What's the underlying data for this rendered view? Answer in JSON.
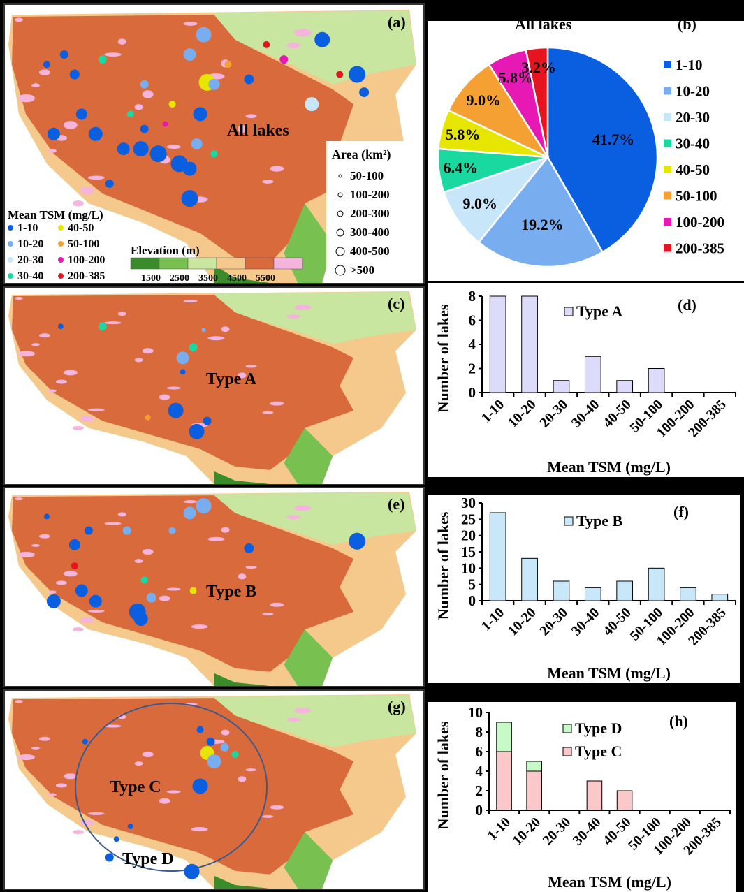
{
  "colors": {
    "tsm": [
      "#0a5ee0",
      "#78aef0",
      "#c8e6fa",
      "#19d9a0",
      "#e6e600",
      "#f5a032",
      "#e619b4",
      "#e6141e"
    ],
    "elevation": [
      "#3a8c2a",
      "#78c050",
      "#c8e6a0",
      "#f5c88c",
      "#d96a3c",
      "#f5b4dc"
    ],
    "typeA": "#dcdcfa",
    "typeB": "#c8e8fa",
    "typeC": "#fac8c8",
    "typeD": "#c8fac8"
  },
  "map_a": {
    "panel_label": "(a)",
    "title": "All lakes",
    "tsm_legend_title": "Mean TSM (mg/L)",
    "tsm_classes": [
      "1-10",
      "10-20",
      "20-30",
      "30-40",
      "40-50",
      "50-100",
      "100-200",
      "200-385"
    ],
    "elevation_title": "Elevation (m)",
    "elevation_ticks": [
      "1500",
      "2500",
      "3500",
      "4500",
      "5500"
    ],
    "area_title": "Area (km²)",
    "area_classes": [
      "50-100",
      "100-200",
      "200-300",
      "300-400",
      "400-500",
      ">500"
    ]
  },
  "map_c": {
    "panel_label": "(c)",
    "title": "Type A"
  },
  "map_e": {
    "panel_label": "(e)",
    "title": "Type B"
  },
  "map_g": {
    "panel_label": "(g)",
    "title_c": "Type C",
    "title_d": "Type D"
  },
  "chart_data": [
    {
      "type": "pie",
      "panel_label": "(b)",
      "title": "All lakes",
      "categories": [
        "1-10",
        "10-20",
        "20-30",
        "30-40",
        "40-50",
        "50-100",
        "100-200",
        "200-385"
      ],
      "values": [
        41.7,
        19.2,
        9.0,
        6.4,
        5.8,
        9.0,
        5.8,
        3.2
      ],
      "labels": [
        "41.7%",
        "19.2%",
        "9.0%",
        "6.4%",
        "5.8%",
        "9.0%",
        "5.8%",
        "3.2%"
      ],
      "legend_position": "right"
    },
    {
      "type": "bar",
      "panel_label": "(d)",
      "categories": [
        "1-10",
        "10-20",
        "20-30",
        "30-40",
        "40-50",
        "50-100",
        "100-200",
        "200-385"
      ],
      "series": [
        {
          "name": "Type A",
          "values": [
            8,
            8,
            1,
            3,
            1,
            2,
            0,
            0
          ]
        }
      ],
      "xlabel": "Mean TSM (mg/L)",
      "ylabel": "Number of lakes",
      "ylim": [
        0,
        8
      ],
      "yticks": [
        "0",
        "2",
        "4",
        "6",
        "8"
      ],
      "legend_position": "top-center"
    },
    {
      "type": "bar",
      "panel_label": "(f)",
      "categories": [
        "1-10",
        "10-20",
        "20-30",
        "30-40",
        "40-50",
        "50-100",
        "100-200",
        "200-385"
      ],
      "series": [
        {
          "name": "Type B",
          "values": [
            27,
            13,
            6,
            4,
            6,
            10,
            4,
            2
          ]
        }
      ],
      "xlabel": "Mean TSM (mg/L)",
      "ylabel": "Number of lakes",
      "ylim": [
        0,
        30
      ],
      "yticks": [
        "0",
        "5",
        "10",
        "15",
        "20",
        "25",
        "30"
      ],
      "legend_position": "top-center"
    },
    {
      "type": "bar",
      "stacked": true,
      "panel_label": "(h)",
      "categories": [
        "1-10",
        "10-20",
        "20-30",
        "30-40",
        "40-50",
        "50-100",
        "100-200",
        "200-385"
      ],
      "series": [
        {
          "name": "Type C",
          "values": [
            6,
            4,
            0,
            3,
            2,
            0,
            0,
            0
          ]
        },
        {
          "name": "Type D",
          "values": [
            3,
            1,
            0,
            0,
            0,
            0,
            0,
            0
          ]
        }
      ],
      "xlabel": "Mean TSM (mg/L)",
      "ylabel": "Number of lakes",
      "ylim": [
        0,
        10
      ],
      "yticks": [
        "0",
        "2",
        "4",
        "6",
        "8",
        "10"
      ],
      "legend_position": "top-center"
    }
  ]
}
